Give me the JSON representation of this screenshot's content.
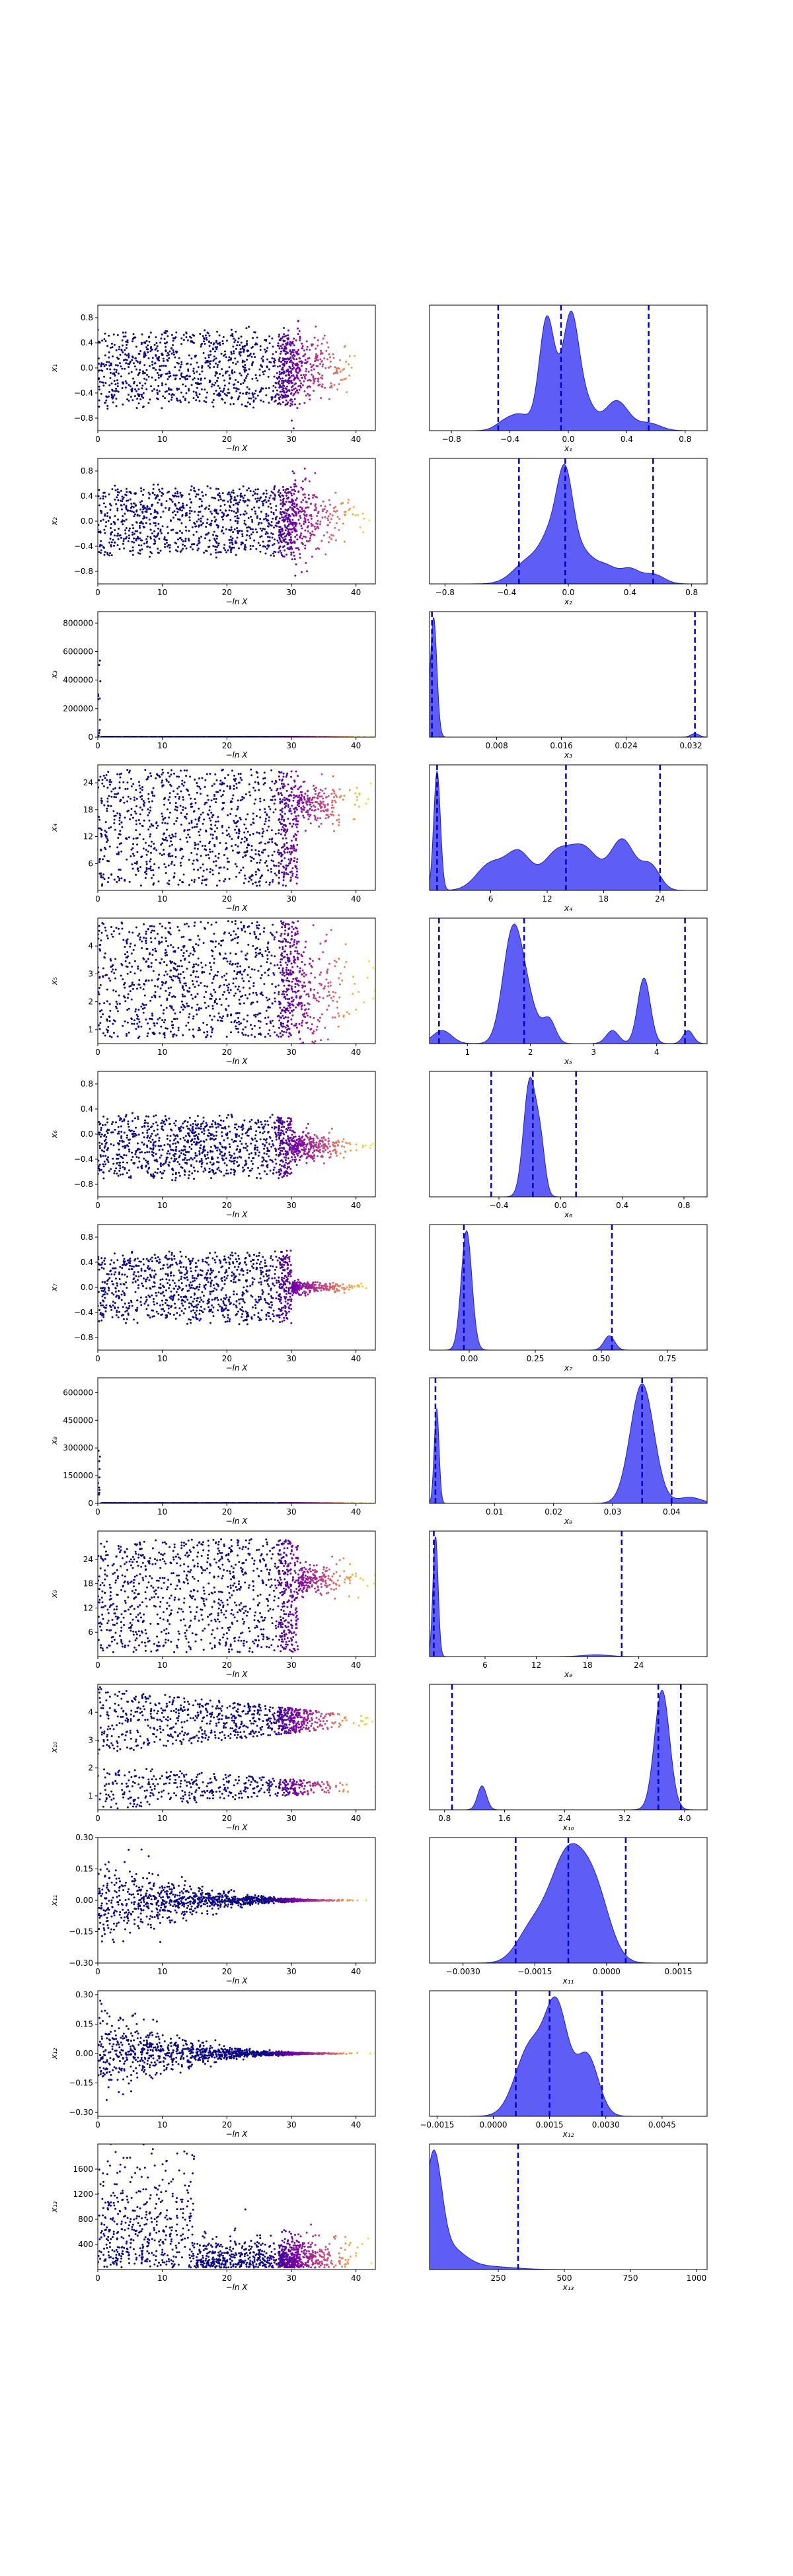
{
  "chart_data": [
    {
      "type": "scatter",
      "row": 1,
      "series": [
        {
          "name": "x1 vs -ln X"
        }
      ],
      "xlabel": "−ln X",
      "ylabel": "x₁",
      "xlim": [
        0,
        43
      ],
      "ylim": [
        -1.0,
        1.0
      ],
      "xticks": [
        0,
        10,
        20,
        30,
        40
      ],
      "yticks": [
        -0.8,
        -0.4,
        0.0,
        0.4,
        0.8
      ],
      "cloud": {
        "mode": "spread",
        "center": 0.0,
        "spread": 0.55,
        "tail": 0.0,
        "tailstd": 0.12
      }
    },
    {
      "type": "area",
      "row": 1,
      "xlabel": "x₁",
      "xlim": [
        -0.95,
        0.95
      ],
      "xticks": [
        -0.8,
        -0.4,
        0.0,
        0.4,
        0.8
      ],
      "vlines": [
        -0.48,
        -0.05,
        0.55
      ],
      "peaks": [
        [
          -0.45,
          0.06,
          0.05
        ],
        [
          -0.33,
          0.08,
          0.15
        ],
        [
          -0.15,
          0.05,
          0.95
        ],
        [
          -0.05,
          0.07,
          0.3
        ],
        [
          0.02,
          0.05,
          0.78
        ],
        [
          0.1,
          0.07,
          0.3
        ],
        [
          0.33,
          0.08,
          0.28
        ],
        [
          0.55,
          0.08,
          0.07
        ]
      ]
    },
    {
      "type": "scatter",
      "row": 2,
      "xlabel": "−ln X",
      "ylabel": "x₂",
      "xlim": [
        0,
        43
      ],
      "ylim": [
        -1.0,
        1.0
      ],
      "xticks": [
        0,
        10,
        20,
        30,
        40
      ],
      "yticks": [
        -0.8,
        -0.4,
        0.0,
        0.4,
        0.8
      ],
      "cloud": {
        "mode": "spread",
        "center": 0.0,
        "spread": 0.5,
        "tail": 0.05,
        "tailstd": 0.12
      }
    },
    {
      "type": "area",
      "row": 2,
      "xlabel": "x₂",
      "xlim": [
        -0.9,
        0.9
      ],
      "xticks": [
        -0.8,
        -0.4,
        0.0,
        0.4,
        0.8
      ],
      "vlines": [
        -0.32,
        -0.02,
        0.55
      ],
      "peaks": [
        [
          -0.25,
          0.1,
          0.3
        ],
        [
          -0.1,
          0.07,
          0.55
        ],
        [
          -0.02,
          0.05,
          1.0
        ],
        [
          0.08,
          0.08,
          0.4
        ],
        [
          0.25,
          0.07,
          0.2
        ],
        [
          0.4,
          0.06,
          0.17
        ],
        [
          0.55,
          0.07,
          0.12
        ]
      ]
    },
    {
      "type": "scatter",
      "row": 3,
      "xlabel": "−ln X",
      "ylabel": "x₃",
      "xlim": [
        0,
        43
      ],
      "ylim": [
        0,
        880000
      ],
      "xticks": [
        0,
        10,
        20,
        30,
        40
      ],
      "yticks": [
        0,
        200000,
        400000,
        600000,
        800000
      ],
      "cloud": {
        "mode": "floor",
        "center": 0,
        "spread": 0,
        "tail": 0,
        "tailstd": 0
      }
    },
    {
      "type": "area",
      "row": 3,
      "xlabel": "x₃",
      "xlim": [
        -0.0003,
        0.034
      ],
      "xticks": [
        0.008,
        0.016,
        0.024,
        0.032
      ],
      "vlines": [
        0.0,
        0.0325
      ],
      "peaks": [
        [
          0.0002,
          0.0004,
          1.0
        ],
        [
          0.0325,
          0.0005,
          0.03
        ]
      ]
    },
    {
      "type": "scatter",
      "row": 4,
      "xlabel": "−ln X",
      "ylabel": "x₄",
      "xlim": [
        0,
        43
      ],
      "ylim": [
        0,
        28
      ],
      "xticks": [
        0,
        10,
        20,
        30,
        40
      ],
      "yticks": [
        6,
        12,
        18,
        24
      ],
      "cloud": {
        "mode": "uniform",
        "center": 14,
        "spread": 13,
        "tail": 19,
        "tailstd": 2.5
      }
    },
    {
      "type": "area",
      "row": 4,
      "xlabel": "x₄",
      "xlim": [
        -0.5,
        29
      ],
      "xticks": [
        6,
        12,
        18,
        24
      ],
      "vlines": [
        0.3,
        14.0,
        24.0
      ],
      "peaks": [
        [
          0.3,
          0.35,
          1.0
        ],
        [
          6,
          1.5,
          0.22
        ],
        [
          9,
          1.3,
          0.3
        ],
        [
          13,
          1.5,
          0.3
        ],
        [
          16,
          1.5,
          0.33
        ],
        [
          20,
          1.3,
          0.42
        ],
        [
          23,
          1.0,
          0.2
        ]
      ]
    },
    {
      "type": "scatter",
      "row": 5,
      "xlabel": "−ln X",
      "ylabel": "x₅",
      "xlim": [
        0,
        43
      ],
      "ylim": [
        0.5,
        5.0
      ],
      "xticks": [
        0,
        10,
        20,
        30,
        40
      ],
      "yticks": [
        1,
        2,
        3,
        4
      ],
      "cloud": {
        "mode": "uniform",
        "center": 2.8,
        "spread": 2.1,
        "tail": 2.0,
        "tailstd": 1.2
      }
    },
    {
      "type": "area",
      "row": 5,
      "xlabel": "x₅",
      "xlim": [
        0.4,
        4.8
      ],
      "xticks": [
        1,
        2,
        3,
        4
      ],
      "vlines": [
        0.55,
        1.9,
        4.45
      ],
      "peaks": [
        [
          0.6,
          0.15,
          0.12
        ],
        [
          1.7,
          0.15,
          0.82
        ],
        [
          1.9,
          0.18,
          0.45
        ],
        [
          2.3,
          0.1,
          0.2
        ],
        [
          3.3,
          0.1,
          0.12
        ],
        [
          3.8,
          0.1,
          0.6
        ],
        [
          4.5,
          0.08,
          0.12
        ]
      ]
    },
    {
      "type": "scatter",
      "row": 6,
      "xlabel": "−ln X",
      "ylabel": "x₆",
      "xlim": [
        0,
        43
      ],
      "ylim": [
        -1.0,
        1.0
      ],
      "xticks": [
        0,
        10,
        20,
        30,
        40
      ],
      "yticks": [
        -0.8,
        -0.4,
        0.0,
        0.4,
        0.8
      ],
      "cloud": {
        "mode": "spread",
        "center": -0.2,
        "spread": 0.45,
        "tail": -0.2,
        "tailstd": 0.05
      }
    },
    {
      "type": "area",
      "row": 6,
      "xlabel": "x₆",
      "xlim": [
        -0.85,
        0.95
      ],
      "xticks": [
        -0.4,
        0.0,
        0.4,
        0.8
      ],
      "vlines": [
        -0.45,
        -0.18,
        0.1
      ],
      "peaks": [
        [
          -0.2,
          0.04,
          1.0
        ],
        [
          -0.13,
          0.03,
          0.4
        ]
      ]
    },
    {
      "type": "scatter",
      "row": 7,
      "xlabel": "−ln X",
      "ylabel": "x₇",
      "xlim": [
        0,
        43
      ],
      "ylim": [
        -1.0,
        1.0
      ],
      "xticks": [
        0,
        10,
        20,
        30,
        40
      ],
      "yticks": [
        -0.8,
        -0.4,
        0.0,
        0.4,
        0.8
      ],
      "cloud": {
        "mode": "spread",
        "center": 0.0,
        "spread": 0.5,
        "tail": 0.0,
        "tailstd": 0.02
      }
    },
    {
      "type": "area",
      "row": 7,
      "xlabel": "x₇",
      "xlim": [
        -0.15,
        0.9
      ],
      "xticks": [
        0.0,
        0.25,
        0.5,
        0.75
      ],
      "vlines": [
        -0.02,
        0.54
      ],
      "peaks": [
        [
          -0.01,
          0.02,
          1.0
        ],
        [
          0.53,
          0.02,
          0.12
        ]
      ]
    },
    {
      "type": "scatter",
      "row": 8,
      "xlabel": "−ln X",
      "ylabel": "x₈",
      "xlim": [
        0,
        43
      ],
      "ylim": [
        0,
        680000
      ],
      "xticks": [
        0,
        10,
        20,
        30,
        40
      ],
      "yticks": [
        0,
        150000,
        300000,
        450000,
        600000
      ],
      "cloud": {
        "mode": "floor",
        "center": 0,
        "spread": 0,
        "tail": 0,
        "tailstd": 0
      }
    },
    {
      "type": "area",
      "row": 8,
      "xlabel": "x₈",
      "xlim": [
        -0.001,
        0.046
      ],
      "xticks": [
        0.01,
        0.02,
        0.03,
        0.04
      ],
      "vlines": [
        0.0,
        0.035,
        0.04
      ],
      "peaks": [
        [
          0.0002,
          0.0004,
          0.8
        ],
        [
          0.035,
          0.002,
          1.0
        ],
        [
          0.043,
          0.002,
          0.05
        ]
      ]
    },
    {
      "type": "scatter",
      "row": 9,
      "xlabel": "−ln X",
      "ylabel": "x₉",
      "xlim": [
        0,
        43
      ],
      "ylim": [
        0,
        31
      ],
      "xticks": [
        0,
        10,
        20,
        30,
        40
      ],
      "yticks": [
        6,
        12,
        18,
        24
      ],
      "cloud": {
        "mode": "uniform",
        "center": 15,
        "spread": 14,
        "tail": 19,
        "tailstd": 2.0
      }
    },
    {
      "type": "area",
      "row": 9,
      "xlabel": "x₉",
      "xlim": [
        -0.5,
        32
      ],
      "xticks": [
        6,
        12,
        18,
        24
      ],
      "vlines": [
        0.0,
        22.0
      ],
      "peaks": [
        [
          0.2,
          0.3,
          1.0
        ],
        [
          19,
          1.5,
          0.015
        ]
      ]
    },
    {
      "type": "scatter",
      "row": 10,
      "xlabel": "−ln X",
      "ylabel": "x₁₀",
      "xlim": [
        0,
        43
      ],
      "ylim": [
        0.5,
        5.0
      ],
      "xticks": [
        0,
        10,
        20,
        30,
        40
      ],
      "yticks": [
        1,
        2,
        3,
        4
      ],
      "cloud": {
        "mode": "bimodal",
        "center": 3.7,
        "spread": 1.2,
        "tail": 3.7,
        "tailstd": 0.1
      }
    },
    {
      "type": "area",
      "row": 10,
      "xlabel": "x₁₀",
      "xlim": [
        0.6,
        4.3
      ],
      "xticks": [
        0.8,
        1.6,
        2.4,
        3.2,
        4.0
      ],
      "vlines": [
        0.9,
        3.65,
        3.95
      ],
      "peaks": [
        [
          1.3,
          0.06,
          0.2
        ],
        [
          3.7,
          0.1,
          1.0
        ]
      ]
    },
    {
      "type": "scatter",
      "row": 11,
      "xlabel": "−ln X",
      "ylabel": "x₁₁",
      "xlim": [
        0,
        43
      ],
      "ylim": [
        -0.3,
        0.3
      ],
      "xticks": [
        0,
        10,
        20,
        30,
        40
      ],
      "yticks": [
        -0.3,
        -0.15,
        0.0,
        0.15,
        0.3
      ],
      "cloud": {
        "mode": "funnel",
        "center": 0.0,
        "spread": 0.22,
        "tail": 0.0,
        "tailstd": 0.002
      }
    },
    {
      "type": "area",
      "row": 11,
      "xlabel": "x₁₁",
      "xlim": [
        -0.0037,
        0.0021
      ],
      "xticks": [
        -0.003,
        -0.0015,
        0.0,
        0.0015
      ],
      "vlines": [
        -0.0019,
        -0.0008,
        0.0004
      ],
      "peaks": [
        [
          -0.0008,
          0.0004,
          1.0
        ],
        [
          -0.0002,
          0.0003,
          0.45
        ],
        [
          -0.0016,
          0.0003,
          0.25
        ]
      ]
    },
    {
      "type": "scatter",
      "row": 12,
      "xlabel": "−ln X",
      "ylabel": "x₁₂",
      "xlim": [
        0,
        43
      ],
      "ylim": [
        -0.32,
        0.32
      ],
      "xticks": [
        0,
        10,
        20,
        30,
        40
      ],
      "yticks": [
        -0.3,
        -0.15,
        0.0,
        0.15,
        0.3
      ],
      "cloud": {
        "mode": "funnel",
        "center": 0.0,
        "spread": 0.2,
        "tail": 0.0,
        "tailstd": 0.002
      }
    },
    {
      "type": "area",
      "row": 12,
      "xlabel": "x₁₂",
      "xlim": [
        -0.0017,
        0.0057
      ],
      "xticks": [
        -0.0015,
        0.0,
        0.0015,
        0.003,
        0.0045
      ],
      "vlines": [
        0.0006,
        0.0015,
        0.0029
      ],
      "peaks": [
        [
          0.001,
          0.0004,
          0.7
        ],
        [
          0.0017,
          0.0003,
          1.0
        ],
        [
          0.0025,
          0.0003,
          0.6
        ]
      ]
    },
    {
      "type": "scatter",
      "row": 13,
      "xlabel": "−ln X",
      "ylabel": "x₁₃",
      "xlim": [
        0,
        43
      ],
      "ylim": [
        0,
        2000
      ],
      "xticks": [
        0,
        10,
        20,
        30,
        40
      ],
      "yticks": [
        400,
        800,
        1200,
        1600
      ],
      "cloud": {
        "mode": "skewlow",
        "center": 0,
        "spread": 900,
        "tail": 80,
        "tailstd": 80
      }
    },
    {
      "type": "area",
      "row": 13,
      "xlabel": "x₁₃",
      "xlim": [
        -10,
        1040
      ],
      "xticks": [
        250,
        500,
        750,
        1000
      ],
      "vlines": [
        325
      ],
      "peaks": [
        [
          5,
          30,
          1.0
        ],
        [
          60,
          60,
          0.2
        ],
        [
          200,
          100,
          0.03
        ]
      ]
    }
  ],
  "tick_labels": {
    "scatter_x": [
      "0",
      "10",
      "20",
      "30",
      "40"
    ],
    "r1_y": [
      "−0.8",
      "−0.4",
      "0.0",
      "0.4",
      "0.8"
    ],
    "r1_x": [
      "−0.8",
      "−0.4",
      "0.0",
      "0.4",
      "0.8"
    ],
    "r2_y": [
      "−0.8",
      "−0.4",
      "0.0",
      "0.4",
      "0.8"
    ],
    "r2_x": [
      "−0.8",
      "−0.4",
      "0.0",
      "0.4",
      "0.8"
    ],
    "r3_y": [
      "0",
      "200000",
      "400000",
      "600000",
      "800000"
    ],
    "r3_x": [
      "0.008",
      "0.016",
      "0.024",
      "0.032"
    ],
    "r4_y": [
      "6",
      "12",
      "18",
      "24"
    ],
    "r4_x": [
      "6",
      "12",
      "18",
      "24"
    ],
    "r5_y": [
      "1",
      "2",
      "3",
      "4"
    ],
    "r5_x": [
      "1",
      "2",
      "3",
      "4"
    ],
    "r6_y": [
      "−0.8",
      "−0.4",
      "0.0",
      "0.4",
      "0.8"
    ],
    "r6_x": [
      "−0.4",
      "0.0",
      "0.4",
      "0.8"
    ],
    "r7_y": [
      "−0.8",
      "−0.4",
      "0.0",
      "0.4",
      "0.8"
    ],
    "r7_x": [
      "0.00",
      "0.25",
      "0.50",
      "0.75"
    ],
    "r8_y": [
      "0",
      "150000",
      "300000",
      "450000",
      "600000"
    ],
    "r8_x": [
      "0.01",
      "0.02",
      "0.03",
      "0.04"
    ],
    "r9_y": [
      "6",
      "12",
      "18",
      "24"
    ],
    "r9_x": [
      "6",
      "12",
      "18",
      "24"
    ],
    "r10_y": [
      "1",
      "2",
      "3",
      "4"
    ],
    "r10_x": [
      "0.8",
      "1.6",
      "2.4",
      "3.2",
      "4.0"
    ],
    "r11_y": [
      "−0.30",
      "−0.15",
      "0.00",
      "0.15",
      "0.30"
    ],
    "r11_x": [
      "−0.0030",
      "−0.0015",
      "0.0000",
      "0.0015"
    ],
    "r12_y": [
      "−0.30",
      "−0.15",
      "0.00",
      "0.15",
      "0.30"
    ],
    "r12_x": [
      "−0.0015",
      "0.0000",
      "0.0015",
      "0.0030",
      "0.0045"
    ],
    "r13_y": [
      "400",
      "800",
      "1200",
      "1600"
    ],
    "r13_x": [
      "250",
      "500",
      "750",
      "1000"
    ]
  },
  "colors": {
    "scatter_low": "#0d0887",
    "scatter_mid": "#cc4778",
    "scatter_high": "#f0f921",
    "hist_fill": "#3a3af5",
    "hist_edge": "#1f1fd0",
    "quantile_line": "#0000cc",
    "axes": "#000000",
    "background": "#ffffff"
  }
}
